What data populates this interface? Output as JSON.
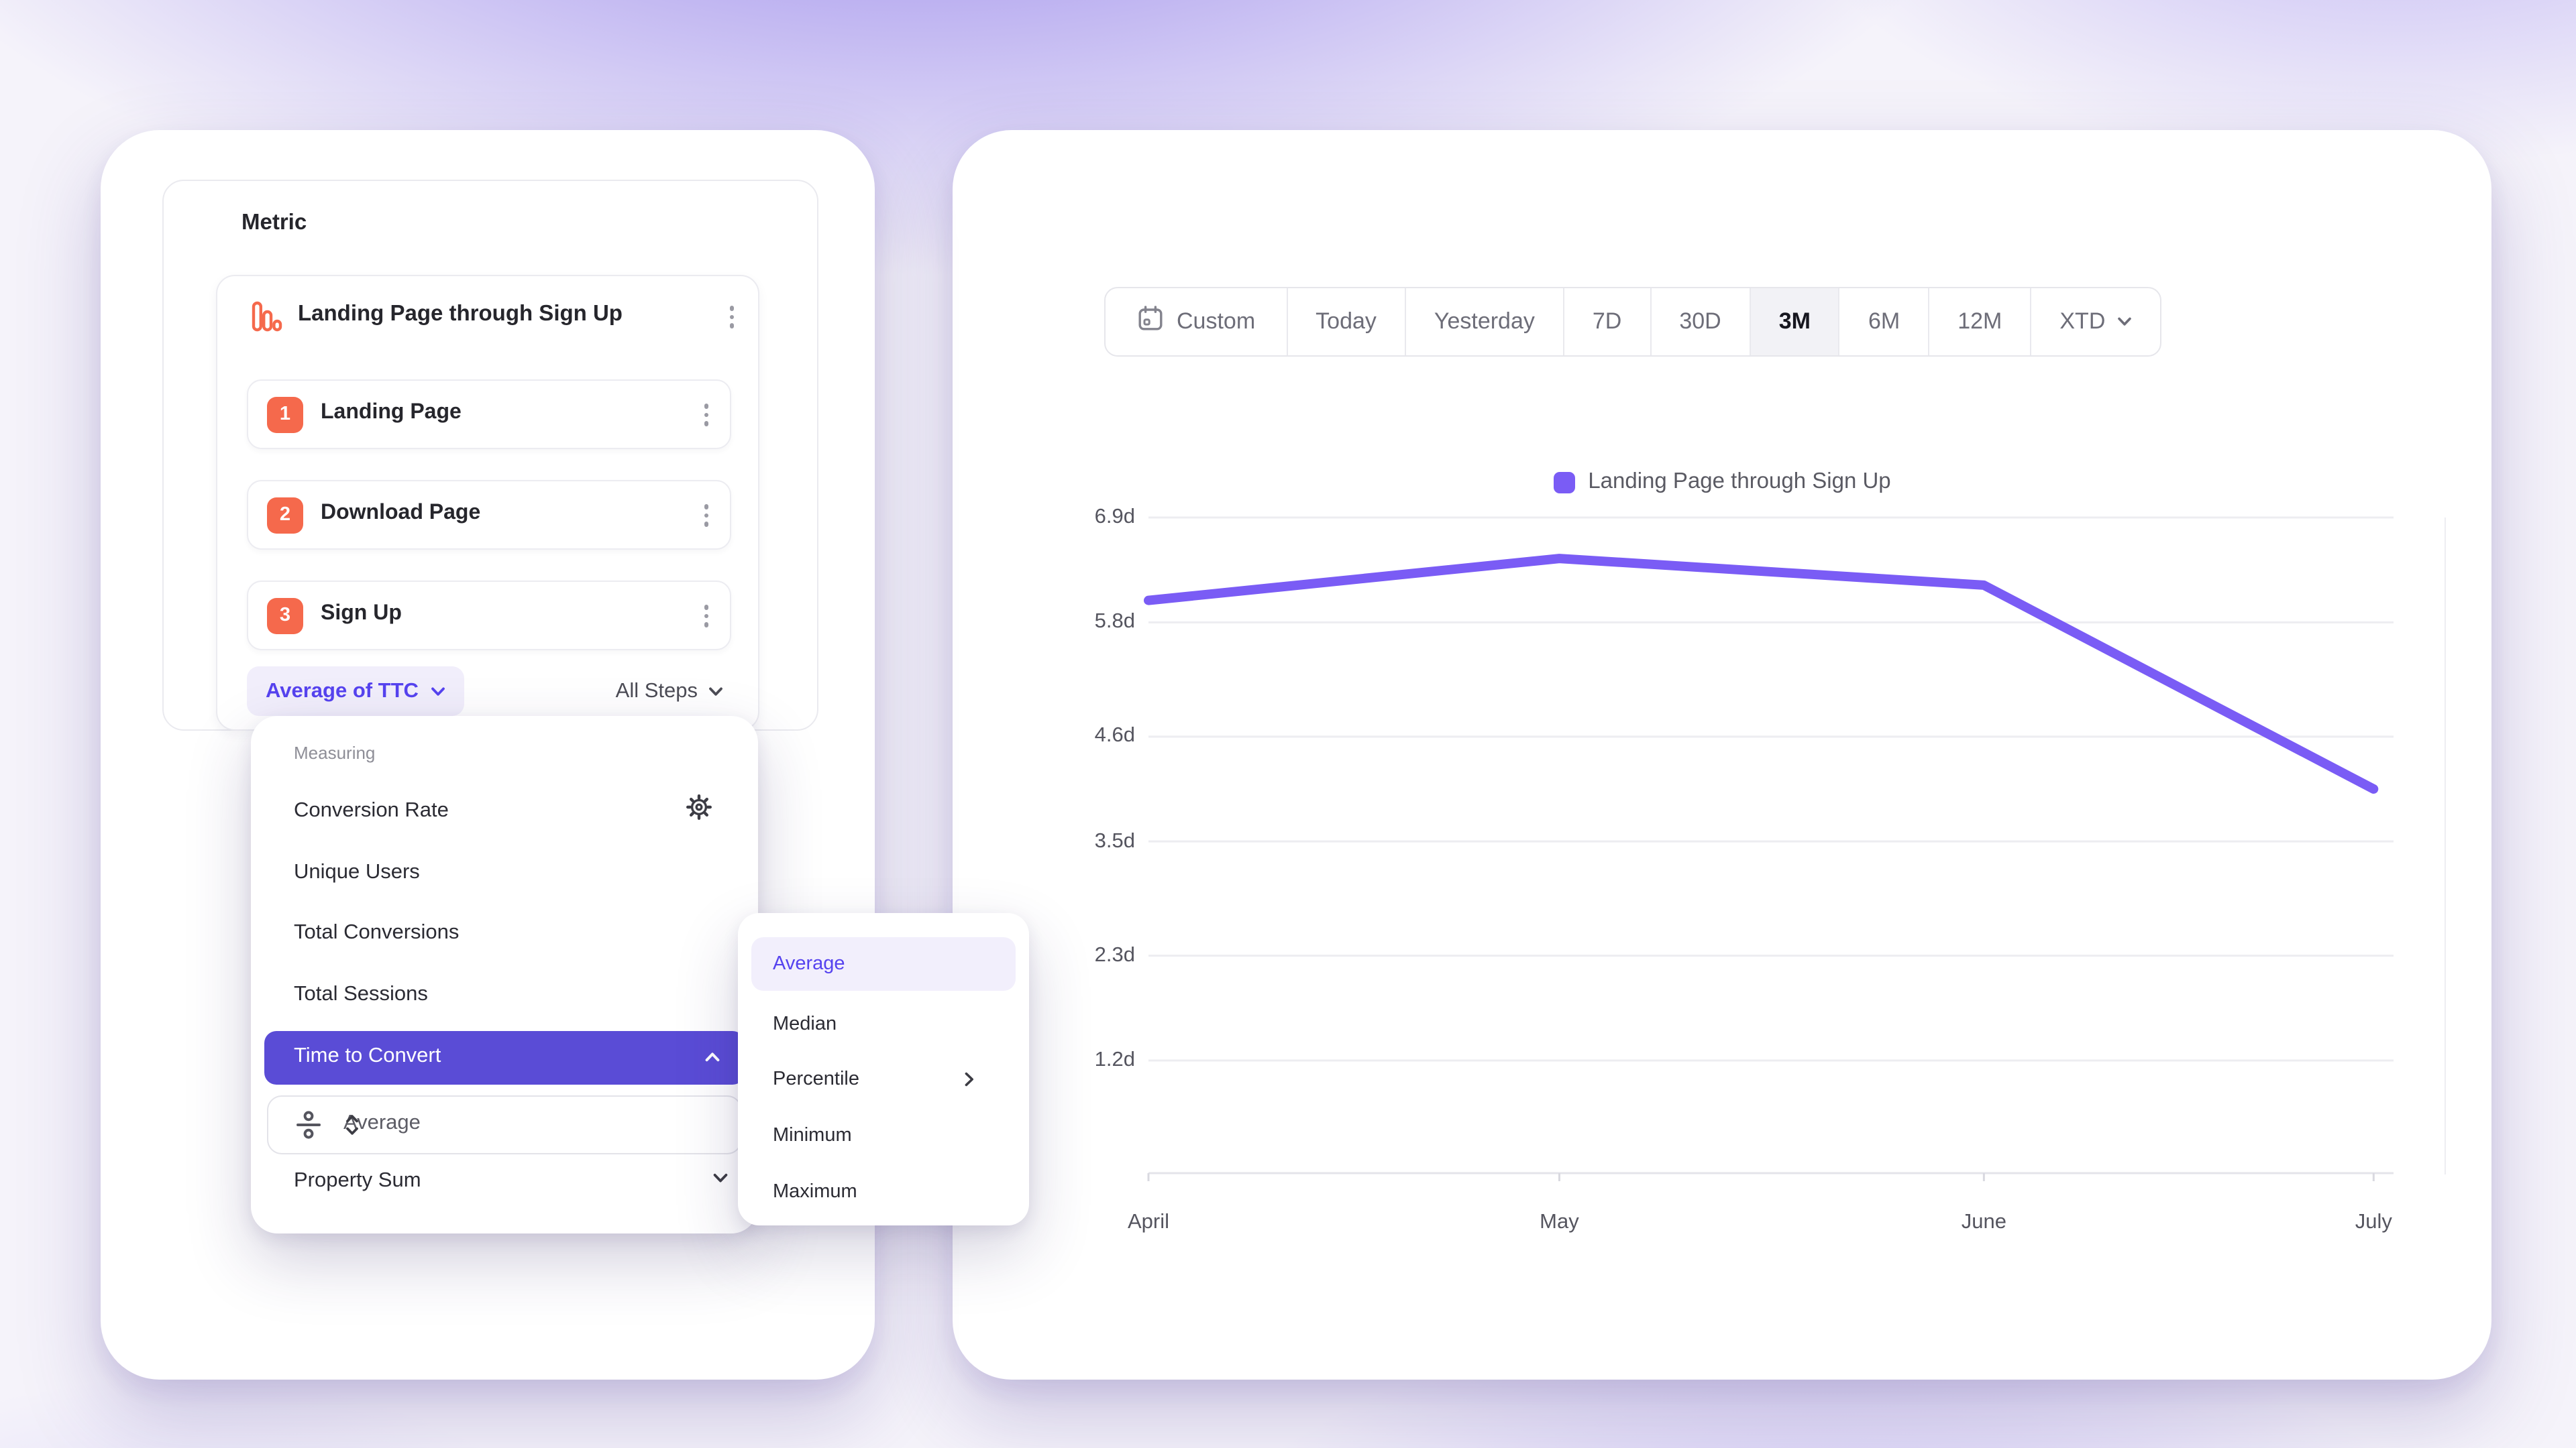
{
  "metric_panel": {
    "title": "Metric"
  },
  "funnel": {
    "title": "Landing Page through Sign Up",
    "steps": [
      {
        "number": "1",
        "label": "Landing Page"
      },
      {
        "number": "2",
        "label": "Download Page"
      },
      {
        "number": "3",
        "label": "Sign Up"
      }
    ],
    "measurement": "Average of TTC",
    "scope": "All Steps"
  },
  "measuring_menu": {
    "section_label": "Measuring",
    "items": [
      "Conversion Rate",
      "Unique Users",
      "Total Conversions",
      "Total Sessions"
    ],
    "selected_item": "Time to Convert",
    "selected_sub_value": "Average",
    "last_item": "Property Sum"
  },
  "aggregation_menu": {
    "items": [
      {
        "label": "Average",
        "selected": true,
        "has_submenu": false
      },
      {
        "label": "Median",
        "selected": false,
        "has_submenu": false
      },
      {
        "label": "Percentile",
        "selected": false,
        "has_submenu": true
      },
      {
        "label": "Minimum",
        "selected": false,
        "has_submenu": false
      },
      {
        "label": "Maximum",
        "selected": false,
        "has_submenu": false
      }
    ]
  },
  "date_range": {
    "options": [
      "Custom",
      "Today",
      "Yesterday",
      "7D",
      "30D",
      "3M",
      "6M",
      "12M",
      "XTD"
    ],
    "selected": "3M"
  },
  "chart_data": {
    "type": "line",
    "title": "",
    "legend": [
      "Landing Page through Sign Up"
    ],
    "legend_position": "top-center",
    "x": [
      "April",
      "May",
      "June",
      "July"
    ],
    "series": [
      {
        "name": "Landing Page through Sign Up",
        "values": [
          6.03,
          6.47,
          6.19,
          4.05
        ]
      }
    ],
    "y_ticks": {
      "labels": [
        "6.9d",
        "5.8d",
        "4.6d",
        "3.5d",
        "2.3d",
        "1.2d"
      ],
      "values": [
        6.9,
        5.8,
        4.6,
        3.5,
        2.3,
        1.2
      ]
    },
    "unit": "days",
    "ylim": [
      1.2,
      6.9
    ],
    "grid": true,
    "color": "#7a5cf5"
  },
  "colors": {
    "accent_purple": "#5a4cd6",
    "bright_purple": "#5643ef",
    "chart_purple": "#7a5cf5",
    "coral": "#f5694c",
    "pill_bg": "#f1eefb"
  }
}
